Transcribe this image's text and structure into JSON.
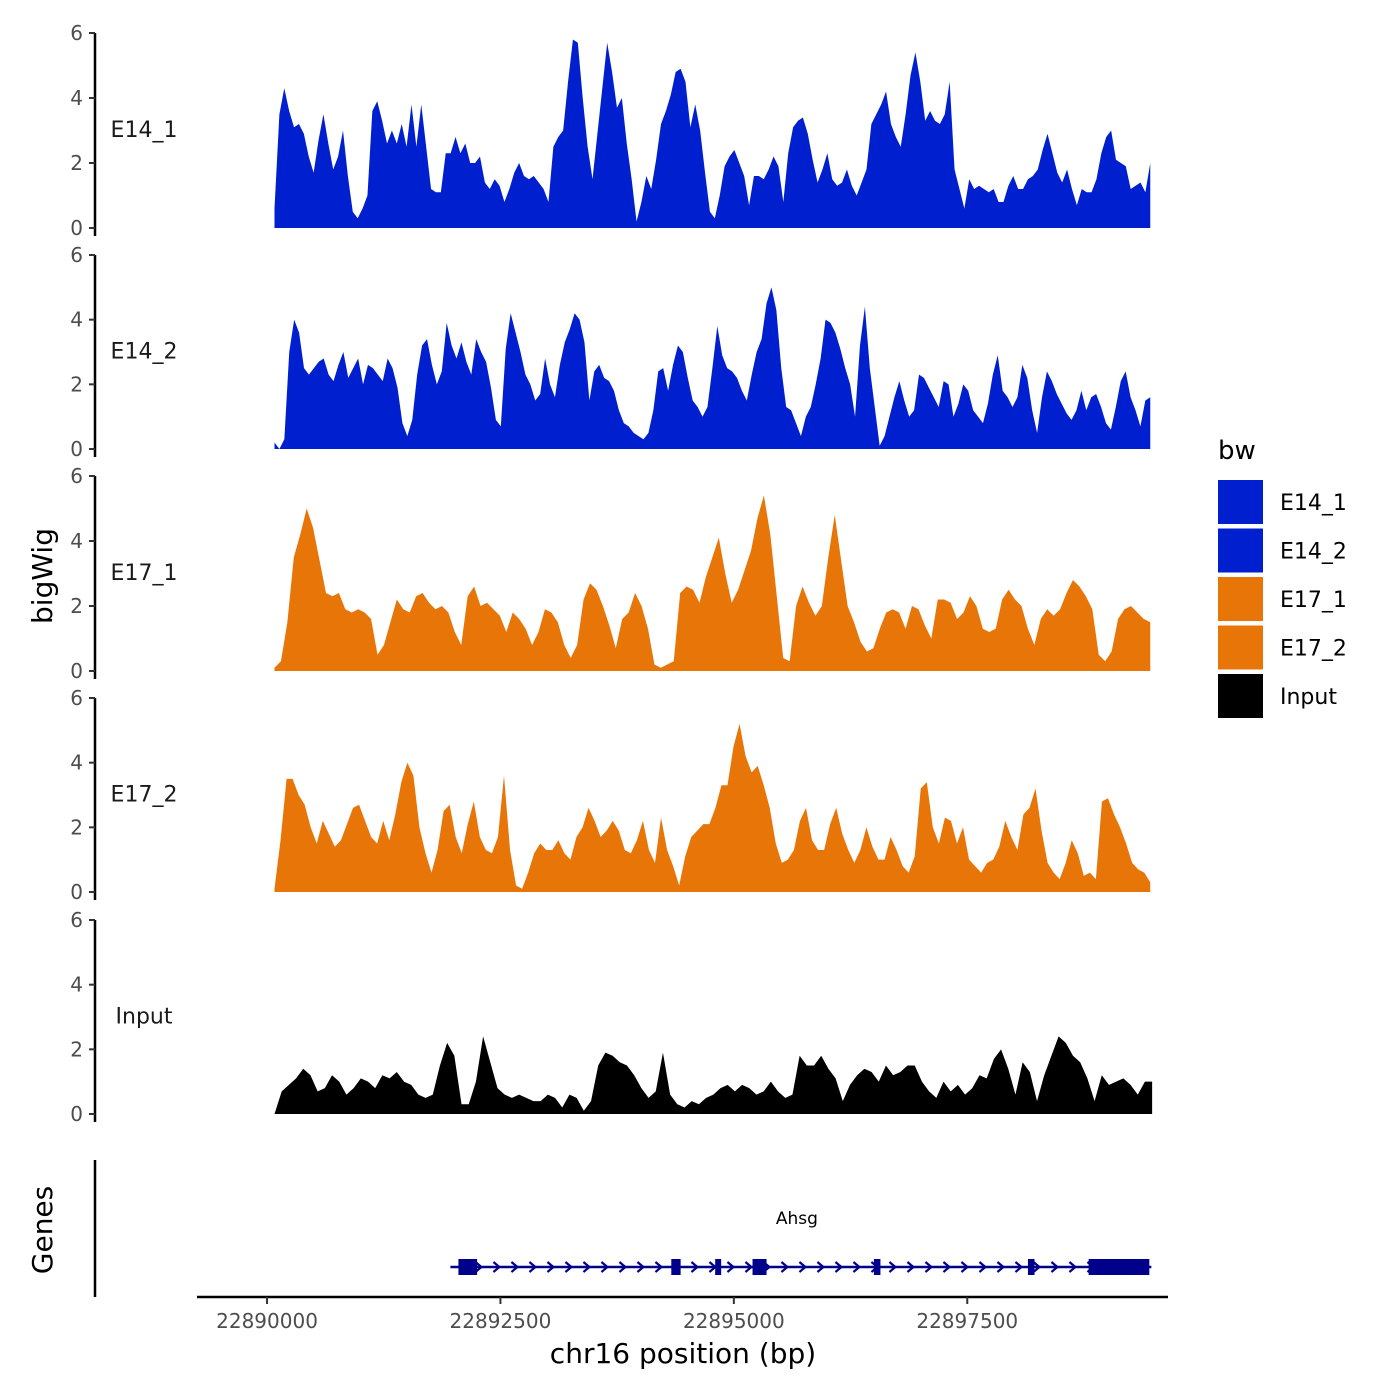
{
  "chart_data": {
    "type": "area",
    "ylabel": "bigWig",
    "xlabel": "chr16 position (bp)",
    "ylim": [
      0,
      6
    ],
    "yticks": [
      "0",
      "2",
      "4",
      "6"
    ],
    "xlim": [
      22889250,
      22899650
    ],
    "xticks": [
      22890000,
      22892500,
      22895000,
      22897500
    ],
    "xtick_labels": [
      "22890000",
      "22892500",
      "22895000",
      "22897500"
    ],
    "legend": {
      "title": "bw",
      "position": "right",
      "entries": [
        {
          "label": "E14_1",
          "color": "#0020d0"
        },
        {
          "label": "E14_2",
          "color": "#0020d0"
        },
        {
          "label": "E17_1",
          "color": "#e87508"
        },
        {
          "label": "E17_2",
          "color": "#e87508"
        },
        {
          "label": "Input",
          "color": "#000000"
        }
      ]
    },
    "tracks": [
      {
        "name": "E14_1",
        "color": "#0020d0",
        "x_start": 22890080,
        "x_end": 22899460,
        "values": [
          0.6,
          3.5,
          4.3,
          3.6,
          3.1,
          3.2,
          2.9,
          2.2,
          1.7,
          2.7,
          3.5,
          2.6,
          1.8,
          2.2,
          3.0,
          1.6,
          0.5,
          0.3,
          0.6,
          1.0,
          3.6,
          3.9,
          3.3,
          2.6,
          3.0,
          2.6,
          3.2,
          2.5,
          3.8,
          2.5,
          3.8,
          2.5,
          1.2,
          1.1,
          1.1,
          2.3,
          2.3,
          2.8,
          2.3,
          2.6,
          2.0,
          2.0,
          2.2,
          1.4,
          1.2,
          1.5,
          1.3,
          0.8,
          1.2,
          1.7,
          2.0,
          1.6,
          1.5,
          1.6,
          1.4,
          1.2,
          0.8,
          2.5,
          2.8,
          3.0,
          4.5,
          5.8,
          5.7,
          4.0,
          2.5,
          1.5,
          2.9,
          4.3,
          5.7,
          4.8,
          3.7,
          4.0,
          2.6,
          1.5,
          0.2,
          0.8,
          1.6,
          1.2,
          2.1,
          3.2,
          3.6,
          4.1,
          4.8,
          4.9,
          4.5,
          3.1,
          3.8,
          3.0,
          1.7,
          0.5,
          0.3,
          1.0,
          1.9,
          2.2,
          2.4,
          2.0,
          1.6,
          0.7,
          1.6,
          1.6,
          1.5,
          1.8,
          2.2,
          1.9,
          0.8,
          2.3,
          3.1,
          3.3,
          3.4,
          2.9,
          2.1,
          1.4,
          1.8,
          2.3,
          1.5,
          1.3,
          1.4,
          1.8,
          1.3,
          1.0,
          1.4,
          1.8,
          3.2,
          3.5,
          3.8,
          4.2,
          3.2,
          2.8,
          2.5,
          3.5,
          4.7,
          5.4,
          4.5,
          3.3,
          3.6,
          3.3,
          3.2,
          3.5,
          4.5,
          1.8,
          1.2,
          0.6,
          1.5,
          1.2,
          1.3,
          1.2,
          1.1,
          1.2,
          0.8,
          0.8,
          1.3,
          1.6,
          1.2,
          1.2,
          1.5,
          1.6,
          1.8,
          2.4,
          2.9,
          2.3,
          1.7,
          1.4,
          1.8,
          1.2,
          0.7,
          1.2,
          1.1,
          1.1,
          1.5,
          2.3,
          2.8,
          3.0,
          2.1,
          2.0,
          1.9,
          1.2,
          1.3,
          1.4,
          1.1,
          2.0
        ]
      },
      {
        "name": "E14_2",
        "color": "#0020d0",
        "x_start": 22890080,
        "x_end": 22899460,
        "values": [
          0.2,
          0.0,
          0.3,
          3.0,
          4.0,
          3.6,
          2.5,
          2.3,
          2.5,
          2.7,
          2.8,
          2.3,
          2.1,
          2.6,
          3.0,
          2.2,
          2.5,
          2.8,
          2.0,
          2.6,
          2.5,
          2.3,
          2.1,
          2.8,
          2.5,
          1.9,
          0.8,
          0.4,
          0.9,
          2.3,
          3.2,
          3.4,
          2.6,
          2.0,
          2.4,
          3.9,
          3.2,
          2.8,
          3.3,
          2.7,
          2.3,
          3.4,
          3.0,
          2.7,
          1.9,
          0.9,
          0.7,
          3.1,
          4.2,
          3.6,
          3.0,
          2.3,
          2.0,
          1.5,
          1.7,
          2.8,
          2.0,
          1.6,
          2.6,
          3.3,
          3.7,
          4.2,
          4.0,
          3.3,
          1.5,
          2.4,
          2.6,
          2.2,
          2.1,
          1.8,
          1.2,
          0.8,
          0.7,
          0.5,
          0.4,
          0.3,
          0.5,
          1.2,
          2.4,
          2.5,
          1.8,
          2.6,
          3.2,
          3.0,
          2.2,
          1.5,
          1.3,
          1.0,
          1.3,
          2.5,
          3.8,
          2.9,
          2.5,
          2.4,
          2.2,
          1.8,
          1.5,
          2.3,
          3.0,
          3.4,
          4.5,
          5.0,
          4.3,
          2.5,
          1.3,
          1.2,
          0.8,
          0.4,
          1.0,
          1.3,
          2.0,
          2.8,
          4.0,
          3.9,
          3.6,
          3.1,
          2.5,
          2.0,
          1.0,
          3.2,
          4.4,
          2.5,
          1.3,
          0.1,
          0.4,
          1.0,
          1.6,
          2.1,
          1.5,
          1.0,
          1.2,
          2.3,
          2.2,
          1.9,
          1.6,
          1.3,
          2.1,
          2.0,
          1.0,
          1.4,
          2.0,
          1.8,
          1.2,
          1.0,
          0.8,
          1.4,
          2.3,
          2.9,
          1.8,
          1.6,
          1.3,
          1.6,
          2.6,
          2.2,
          1.2,
          0.5,
          1.6,
          2.4,
          2.1,
          1.7,
          1.4,
          1.1,
          0.9,
          1.2,
          1.8,
          1.2,
          1.6,
          1.7,
          1.3,
          0.8,
          0.6,
          1.3,
          2.1,
          2.4,
          1.6,
          1.2,
          0.7,
          1.5,
          1.6
        ]
      },
      {
        "name": "E17_1",
        "color": "#e87508",
        "x_start": 22890080,
        "x_end": 22899460,
        "values": [
          0.1,
          0.3,
          1.5,
          3.5,
          4.2,
          5.0,
          4.4,
          3.4,
          2.4,
          2.3,
          2.4,
          1.9,
          1.8,
          1.9,
          1.8,
          1.6,
          0.5,
          0.8,
          1.5,
          2.2,
          1.9,
          1.8,
          2.3,
          2.4,
          2.1,
          1.9,
          2.0,
          1.8,
          1.2,
          0.8,
          2.3,
          2.6,
          2.0,
          2.1,
          1.9,
          1.7,
          1.2,
          1.8,
          1.6,
          1.3,
          0.8,
          1.2,
          1.9,
          1.8,
          1.5,
          0.8,
          0.4,
          0.8,
          2.2,
          2.7,
          2.5,
          2.0,
          1.4,
          0.7,
          1.6,
          1.8,
          2.4,
          2.0,
          1.3,
          0.2,
          0.1,
          0.2,
          0.3,
          2.4,
          2.6,
          2.5,
          2.1,
          2.9,
          3.5,
          4.1,
          3.0,
          2.1,
          2.5,
          3.1,
          3.7,
          4.7,
          5.4,
          4.2,
          2.3,
          0.4,
          0.3,
          2.0,
          2.6,
          2.1,
          1.7,
          2.0,
          3.5,
          4.8,
          3.4,
          2.0,
          1.5,
          0.9,
          0.6,
          0.7,
          1.3,
          1.8,
          1.9,
          1.8,
          1.3,
          2.0,
          1.9,
          1.4,
          1.0,
          2.2,
          2.2,
          2.1,
          1.6,
          1.8,
          2.3,
          2.0,
          1.3,
          1.2,
          1.3,
          2.2,
          2.5,
          2.2,
          2.0,
          1.3,
          0.8,
          1.6,
          1.9,
          1.7,
          1.9,
          2.4,
          2.8,
          2.6,
          2.3,
          1.9,
          0.5,
          0.3,
          0.6,
          1.6,
          1.9,
          2.0,
          1.8,
          1.6,
          1.5
        ]
      },
      {
        "name": "E17_2",
        "color": "#e87508",
        "x_start": 22890080,
        "x_end": 22899460,
        "values": [
          0.1,
          1.6,
          3.5,
          3.5,
          3.0,
          2.7,
          2.0,
          1.5,
          2.2,
          1.8,
          1.4,
          1.6,
          2.1,
          2.6,
          2.7,
          2.2,
          1.7,
          1.5,
          2.2,
          1.6,
          2.4,
          3.4,
          4.0,
          3.6,
          2.0,
          1.2,
          0.6,
          1.3,
          2.5,
          2.7,
          1.7,
          1.2,
          2.1,
          2.8,
          1.7,
          1.3,
          1.2,
          1.7,
          3.6,
          1.3,
          0.2,
          0.1,
          0.6,
          1.2,
          1.5,
          1.3,
          1.3,
          1.6,
          1.2,
          1.0,
          1.7,
          2.0,
          2.6,
          2.2,
          1.7,
          1.9,
          2.2,
          1.9,
          1.3,
          1.2,
          1.6,
          2.2,
          1.3,
          0.9,
          2.3,
          1.3,
          0.8,
          0.2,
          1.1,
          1.7,
          1.9,
          2.1,
          2.1,
          2.6,
          3.3,
          3.3,
          4.5,
          5.2,
          4.2,
          3.7,
          3.9,
          3.3,
          2.6,
          1.5,
          0.9,
          1.0,
          1.3,
          2.2,
          2.6,
          1.6,
          1.3,
          1.3,
          2.1,
          2.6,
          1.8,
          1.3,
          0.9,
          1.3,
          2.0,
          1.4,
          1.0,
          1.0,
          1.7,
          1.3,
          0.8,
          0.6,
          1.1,
          3.2,
          3.4,
          2.0,
          1.5,
          2.3,
          2.2,
          1.5,
          2.0,
          1.0,
          0.8,
          0.6,
          0.9,
          1.0,
          1.4,
          2.2,
          1.7,
          1.3,
          2.4,
          2.6,
          3.2,
          1.9,
          0.9,
          0.6,
          0.4,
          0.9,
          1.6,
          1.2,
          0.5,
          0.6,
          0.4,
          2.8,
          2.9,
          2.4,
          2.0,
          1.5,
          0.9,
          0.7,
          0.6,
          0.3
        ]
      },
      {
        "name": "Input",
        "color": "#000000",
        "x_start": 22890080,
        "x_end": 22899480,
        "values": [
          0.0,
          0.7,
          0.9,
          1.1,
          1.4,
          1.2,
          0.7,
          0.8,
          1.2,
          1.0,
          0.6,
          0.8,
          1.1,
          1.0,
          0.8,
          1.2,
          1.1,
          1.3,
          1.0,
          0.9,
          0.6,
          0.5,
          0.6,
          1.5,
          2.2,
          1.8,
          0.3,
          0.3,
          1.0,
          2.4,
          1.6,
          0.8,
          0.6,
          0.5,
          0.6,
          0.5,
          0.4,
          0.4,
          0.6,
          0.5,
          0.2,
          0.6,
          0.5,
          0.1,
          0.4,
          1.5,
          1.9,
          1.8,
          1.6,
          1.5,
          1.2,
          0.8,
          0.5,
          0.7,
          1.9,
          0.6,
          0.3,
          0.2,
          0.4,
          0.3,
          0.5,
          0.6,
          0.8,
          0.9,
          0.7,
          0.9,
          0.8,
          0.6,
          0.7,
          1.0,
          0.7,
          0.5,
          0.6,
          1.8,
          1.5,
          1.5,
          1.8,
          1.4,
          1.1,
          0.4,
          0.9,
          1.2,
          1.4,
          1.3,
          1.0,
          1.5,
          1.2,
          1.3,
          1.5,
          1.5,
          1.0,
          0.7,
          0.5,
          1.0,
          0.7,
          0.9,
          0.6,
          0.8,
          1.2,
          1.1,
          1.7,
          2.0,
          1.4,
          0.6,
          1.6,
          1.3,
          0.4,
          1.2,
          1.8,
          2.4,
          2.2,
          1.8,
          1.6,
          1.1,
          0.4,
          1.2,
          0.9,
          1.0,
          1.1,
          0.9,
          0.6,
          1.0,
          1.0
        ]
      }
    ],
    "genes_track": {
      "label": "Genes",
      "gene_name": "Ahsg",
      "color": "#00008b",
      "start": 22892050,
      "end": 22899450,
      "strand": "+",
      "exons": [
        [
          22892050,
          22892250
        ],
        [
          22894330,
          22894430
        ],
        [
          22894800,
          22894850
        ],
        [
          22895200,
          22895350
        ],
        [
          22896500,
          22896570
        ],
        [
          22898150,
          22898220
        ],
        [
          22898800,
          22899450
        ]
      ]
    }
  }
}
